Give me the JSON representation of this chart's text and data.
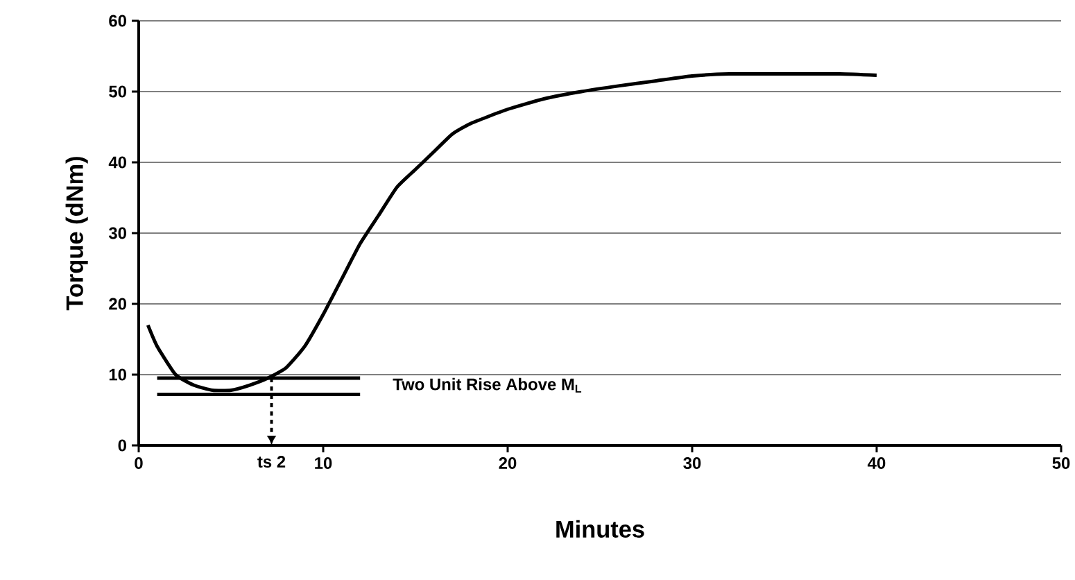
{
  "chart_data": {
    "type": "line",
    "xlabel": "Minutes",
    "ylabel": "Torque (dNm)",
    "series": [
      {
        "color": "#000000",
        "x": [
          0.5,
          1,
          2,
          3,
          4,
          5,
          6,
          7,
          8,
          9,
          10,
          11,
          12,
          13,
          14,
          15,
          16,
          17,
          18,
          20,
          22,
          24,
          26,
          28,
          30,
          32,
          35,
          38,
          40
        ],
        "values": [
          17,
          14,
          10,
          8.5,
          7.8,
          7.8,
          8.5,
          9.5,
          11,
          14,
          18.5,
          23.5,
          28.5,
          32.5,
          36.5,
          39,
          41.5,
          44,
          45.5,
          47.5,
          49,
          50,
          50.8,
          51.5,
          52.2,
          52.5,
          52.5,
          52.5,
          52.3
        ]
      },
      {
        "color": "#000000",
        "x": [
          1,
          12
        ],
        "values": [
          9.5,
          9.5
        ]
      },
      {
        "color": "#000000",
        "x": [
          1,
          12
        ],
        "values": [
          7.2,
          7.2
        ]
      }
    ],
    "annotations": [
      "Two Unit Rise Above M$_{L}$"
    ],
    "ref_lines": [
      {
        "axis": "x",
        "value": 7.2,
        "label": "ts 2",
        "line_style": "dashed"
      }
    ],
    "xlim": [
      0,
      50
    ],
    "ylim": [
      0,
      60
    ],
    "xticks": [
      0,
      10,
      20,
      30,
      40,
      50
    ],
    "yticks": [
      0,
      10,
      20,
      30,
      40,
      50,
      60
    ],
    "grid": "y",
    "line_style": "solid",
    "marker": "none"
  }
}
